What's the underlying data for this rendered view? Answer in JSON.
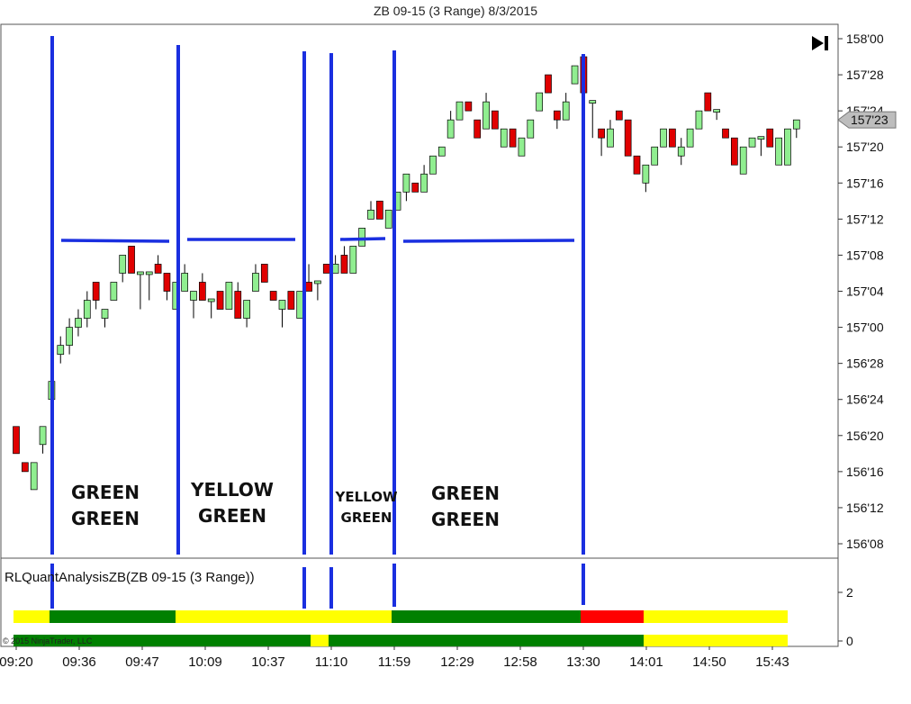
{
  "window_title": "ZB 09-15 (3 Range)  8/3/2015",
  "chart_data": {
    "type": "candlestick",
    "instrument": "ZB 09-15 (3 Range)",
    "date": "8/3/2015",
    "price_axis": {
      "ticks": [
        "158'00",
        "157'28",
        "157'24",
        "157'20",
        "157'16",
        "157'12",
        "157'08",
        "157'04",
        "157'00",
        "156'28",
        "156'24",
        "156'20",
        "156'16",
        "156'12",
        "156'08"
      ],
      "min_ticks32": 5000,
      "max_ticks32": 5056,
      "last_price_label": "157'23",
      "last_price_ticks32": 5047
    },
    "time_axis": {
      "labels": [
        "09:20",
        "09:36",
        "09:47",
        "10:09",
        "10:37",
        "11:10",
        "11:59",
        "12:29",
        "12:58",
        "13:30",
        "14:01",
        "14:50",
        "15:43"
      ]
    },
    "candles": [
      {
        "o": 5013,
        "c": 5010,
        "h": 5013,
        "l": 5010
      },
      {
        "o": 5009,
        "c": 5008,
        "h": 5009,
        "l": 5008
      },
      {
        "o": 5006,
        "c": 5009,
        "h": 5009,
        "l": 5006
      },
      {
        "o": 5011,
        "c": 5013,
        "h": 5013,
        "l": 5010
      },
      {
        "o": 5016,
        "c": 5018,
        "h": 5019,
        "l": 5015
      },
      {
        "o": 5021,
        "c": 5022,
        "h": 5023,
        "l": 5020
      },
      {
        "o": 5022,
        "c": 5024,
        "h": 5025,
        "l": 5021
      },
      {
        "o": 5024,
        "c": 5025,
        "h": 5026,
        "l": 5023
      },
      {
        "o": 5025,
        "c": 5027,
        "h": 5028,
        "l": 5024
      },
      {
        "o": 5029,
        "c": 5027,
        "h": 5029,
        "l": 5026
      },
      {
        "o": 5025,
        "c": 5026,
        "h": 5026,
        "l": 5024
      },
      {
        "o": 5027,
        "c": 5029,
        "h": 5029,
        "l": 5027
      },
      {
        "o": 5030,
        "c": 5032,
        "h": 5032,
        "l": 5029
      },
      {
        "o": 5033,
        "c": 5030,
        "h": 5033,
        "l": 5030
      },
      {
        "o": 5030,
        "c": 5030,
        "h": 5030,
        "l": 5026
      },
      {
        "o": 5030,
        "c": 5030,
        "h": 5030,
        "l": 5027
      },
      {
        "o": 5031,
        "c": 5030,
        "h": 5032,
        "l": 5030
      },
      {
        "o": 5030,
        "c": 5028,
        "h": 5030,
        "l": 5027
      },
      {
        "o": 5026,
        "c": 5029,
        "h": 5029,
        "l": 5026
      },
      {
        "o": 5028,
        "c": 5030,
        "h": 5031,
        "l": 5028
      },
      {
        "o": 5027,
        "c": 5028,
        "h": 5028,
        "l": 5025
      },
      {
        "o": 5029,
        "c": 5027,
        "h": 5030,
        "l": 5027
      },
      {
        "o": 5027,
        "c": 5027,
        "h": 5027,
        "l": 5025
      },
      {
        "o": 5028,
        "c": 5026,
        "h": 5028,
        "l": 5026
      },
      {
        "o": 5026,
        "c": 5029,
        "h": 5029,
        "l": 5026
      },
      {
        "o": 5028,
        "c": 5025,
        "h": 5029,
        "l": 5025
      },
      {
        "o": 5025,
        "c": 5027,
        "h": 5027,
        "l": 5024
      },
      {
        "o": 5028,
        "c": 5030,
        "h": 5031,
        "l": 5028
      },
      {
        "o": 5031,
        "c": 5029,
        "h": 5031,
        "l": 5029
      },
      {
        "o": 5028,
        "c": 5027,
        "h": 5028,
        "l": 5027
      },
      {
        "o": 5026,
        "c": 5027,
        "h": 5027,
        "l": 5024
      },
      {
        "o": 5028,
        "c": 5026,
        "h": 5028,
        "l": 5026
      },
      {
        "o": 5025,
        "c": 5028,
        "h": 5028,
        "l": 5025
      },
      {
        "o": 5029,
        "c": 5028,
        "h": 5031,
        "l": 5028
      },
      {
        "o": 5029,
        "c": 5029,
        "h": 5029,
        "l": 5027
      },
      {
        "o": 5031,
        "c": 5030,
        "h": 5031,
        "l": 5030
      },
      {
        "o": 5030,
        "c": 5031,
        "h": 5032,
        "l": 5030
      },
      {
        "o": 5032,
        "c": 5030,
        "h": 5033,
        "l": 5030
      },
      {
        "o": 5030,
        "c": 5033,
        "h": 5033,
        "l": 5030
      },
      {
        "o": 5033,
        "c": 5035,
        "h": 5035,
        "l": 5033
      },
      {
        "o": 5036,
        "c": 5037,
        "h": 5038,
        "l": 5036
      },
      {
        "o": 5038,
        "c": 5036,
        "h": 5038,
        "l": 5036
      },
      {
        "o": 5035,
        "c": 5037,
        "h": 5037,
        "l": 5035
      },
      {
        "o": 5037,
        "c": 5039,
        "h": 5039,
        "l": 5037
      },
      {
        "o": 5039,
        "c": 5041,
        "h": 5041,
        "l": 5038
      },
      {
        "o": 5040,
        "c": 5039,
        "h": 5040,
        "l": 5039
      },
      {
        "o": 5039,
        "c": 5041,
        "h": 5042,
        "l": 5039
      },
      {
        "o": 5041,
        "c": 5043,
        "h": 5043,
        "l": 5041
      },
      {
        "o": 5043,
        "c": 5044,
        "h": 5044,
        "l": 5043
      },
      {
        "o": 5045,
        "c": 5047,
        "h": 5048,
        "l": 5045
      },
      {
        "o": 5047,
        "c": 5049,
        "h": 5049,
        "l": 5047
      },
      {
        "o": 5049,
        "c": 5048,
        "h": 5049,
        "l": 5048
      },
      {
        "o": 5047,
        "c": 5045,
        "h": 5047,
        "l": 5045
      },
      {
        "o": 5046,
        "c": 5049,
        "h": 5050,
        "l": 5046
      },
      {
        "o": 5048,
        "c": 5046,
        "h": 5048,
        "l": 5046
      },
      {
        "o": 5044,
        "c": 5046,
        "h": 5046,
        "l": 5044
      },
      {
        "o": 5046,
        "c": 5044,
        "h": 5046,
        "l": 5044
      },
      {
        "o": 5043,
        "c": 5045,
        "h": 5045,
        "l": 5043
      },
      {
        "o": 5045,
        "c": 5047,
        "h": 5047,
        "l": 5045
      },
      {
        "o": 5048,
        "c": 5050,
        "h": 5050,
        "l": 5048
      },
      {
        "o": 5052,
        "c": 5050,
        "h": 5052,
        "l": 5050
      },
      {
        "o": 5048,
        "c": 5047,
        "h": 5048,
        "l": 5046
      },
      {
        "o": 5047,
        "c": 5049,
        "h": 5050,
        "l": 5047
      },
      {
        "o": 5051,
        "c": 5053,
        "h": 5053,
        "l": 5051
      },
      {
        "o": 5054,
        "c": 5050,
        "h": 5054,
        "l": 5050
      },
      {
        "o": 5049,
        "c": 5049,
        "h": 5049,
        "l": 5045
      },
      {
        "o": 5046,
        "c": 5045,
        "h": 5046,
        "l": 5043
      },
      {
        "o": 5044,
        "c": 5046,
        "h": 5047,
        "l": 5044
      },
      {
        "o": 5048,
        "c": 5047,
        "h": 5048,
        "l": 5047
      },
      {
        "o": 5047,
        "c": 5043,
        "h": 5047,
        "l": 5043
      },
      {
        "o": 5043,
        "c": 5041,
        "h": 5043,
        "l": 5041
      },
      {
        "o": 5040,
        "c": 5042,
        "h": 5042,
        "l": 5039
      },
      {
        "o": 5042,
        "c": 5044,
        "h": 5044,
        "l": 5042
      },
      {
        "o": 5044,
        "c": 5046,
        "h": 5046,
        "l": 5044
      },
      {
        "o": 5046,
        "c": 5044,
        "h": 5046,
        "l": 5044
      },
      {
        "o": 5043,
        "c": 5044,
        "h": 5045,
        "l": 5042
      },
      {
        "o": 5044,
        "c": 5046,
        "h": 5046,
        "l": 5044
      },
      {
        "o": 5046,
        "c": 5048,
        "h": 5048,
        "l": 5046
      },
      {
        "o": 5050,
        "c": 5048,
        "h": 5050,
        "l": 5048
      },
      {
        "o": 5048,
        "c": 5048,
        "h": 5048,
        "l": 5047
      },
      {
        "o": 5046,
        "c": 5045,
        "h": 5046,
        "l": 5045
      },
      {
        "o": 5045,
        "c": 5042,
        "h": 5045,
        "l": 5042
      },
      {
        "o": 5041,
        "c": 5044,
        "h": 5044,
        "l": 5041
      },
      {
        "o": 5044,
        "c": 5045,
        "h": 5045,
        "l": 5044
      },
      {
        "o": 5045,
        "c": 5045,
        "h": 5045,
        "l": 5043
      },
      {
        "o": 5046,
        "c": 5044,
        "h": 5046,
        "l": 5044
      },
      {
        "o": 5042,
        "c": 5045,
        "h": 5045,
        "l": 5042
      },
      {
        "o": 5042,
        "c": 5046,
        "h": 5046,
        "l": 5042
      },
      {
        "o": 5046,
        "c": 5047,
        "h": 5047,
        "l": 5045
      }
    ],
    "annotations": [
      {
        "text": [
          "GREEN",
          "GREEN"
        ],
        "style": "large"
      },
      {
        "text": [
          "YELLOW",
          "GREEN"
        ],
        "style": "large"
      },
      {
        "text": [
          "YELLOW",
          "GREEN"
        ],
        "style": "small"
      },
      {
        "text": [
          "GREEN",
          "GREEN"
        ],
        "style": "large"
      }
    ],
    "indicator": {
      "label": "RLQuantAnalysisZB(ZB 09-15 (3 Range))",
      "axis_ticks": [
        "2",
        "0"
      ],
      "upper_bar": [
        "yellow",
        "green",
        "yellow",
        "green",
        "red",
        "yellow"
      ],
      "lower_bar": [
        "green",
        "yellow",
        "green",
        "yellow"
      ]
    },
    "colors": {
      "up_candle": "#90ee90",
      "down_candle": "#e00000",
      "annotation_lines": "#1a2fe0",
      "green": "#008000",
      "yellow": "#ffff00",
      "red": "#ff0000"
    }
  },
  "copyright": "© 2015 NinjaTrader, LLC"
}
